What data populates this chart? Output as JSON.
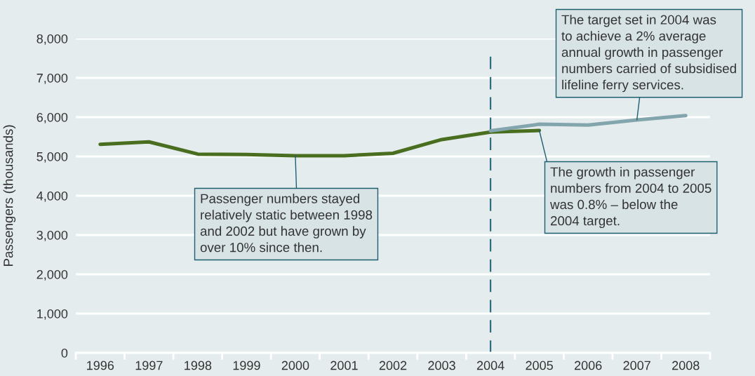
{
  "chart_data": {
    "type": "line",
    "ylabel": "Passengers (thousands)",
    "categories": [
      "1996",
      "1997",
      "1998",
      "1999",
      "2000",
      "2001",
      "2002",
      "2003",
      "2004",
      "2005",
      "2006",
      "2007",
      "2008"
    ],
    "series": [
      {
        "color": "#4a6e1f",
        "values": [
          5310,
          5370,
          5060,
          5050,
          5020,
          5020,
          5080,
          5430,
          5620,
          5660,
          null,
          null,
          null
        ]
      },
      {
        "color": "#83a5ad",
        "values": [
          null,
          null,
          null,
          null,
          null,
          null,
          null,
          null,
          5650,
          5820,
          5800,
          5930,
          6040
        ]
      }
    ],
    "ylim": [
      0,
      8000
    ],
    "yticks": [
      0,
      {
        "value": 1000,
        "label": "1,000"
      },
      {
        "value": 2000,
        "label": "2,000"
      },
      {
        "value": 3000,
        "label": "3,000"
      },
      {
        "value": 4000,
        "label": "4,000"
      },
      {
        "value": 5000,
        "label": "5,000"
      },
      {
        "value": 6000,
        "label": "6,000"
      },
      {
        "value": 7000,
        "label": "7,000"
      },
      {
        "value": 8000,
        "label": "8,000"
      }
    ],
    "grid": "y",
    "marker": "none",
    "line_style": "solid",
    "ref_lines": [
      {
        "axis": "x",
        "value": "2004",
        "color": "#2d6f80",
        "line_style": "dashed"
      }
    ],
    "annotations": [
      {
        "text": "Passenger numbers stayed\nrelatively static between 1998\nand 2002 but have grown by\nover 10% since then.",
        "x": "2000",
        "y": 5020
      },
      {
        "text": "The growth in passenger\nnumbers from 2004 to 2005\nwas 0.8% – below the\n2004 target.",
        "x": "2005",
        "y": 5660
      },
      {
        "text": "The target set in 2004 was\nto achieve a 2% average\nannual growth in passenger\nnumbers carried of subsidised\nlifeline ferry services.",
        "x": "2007",
        "y": 5930
      }
    ]
  }
}
